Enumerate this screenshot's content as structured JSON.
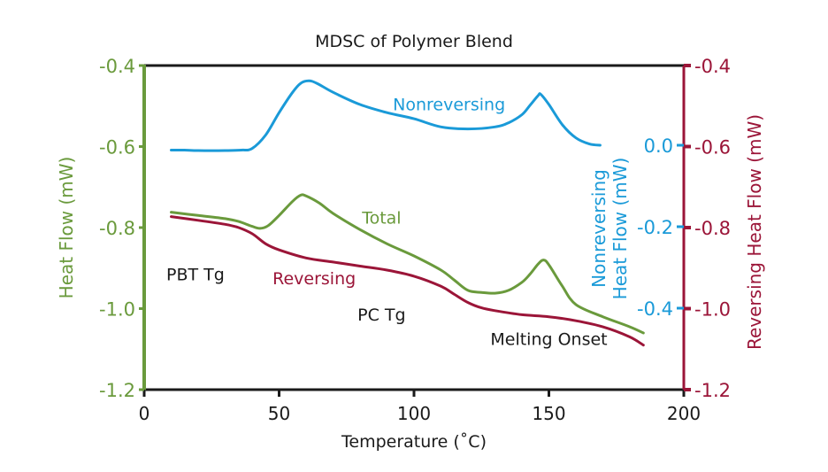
{
  "chart_data": {
    "type": "line",
    "title": "MDSC of Polymer Blend",
    "xlabel": "Temperature (˚C)",
    "xlim": [
      0,
      200
    ],
    "xticks": [
      0,
      50,
      100,
      150,
      200
    ],
    "xtick_labels": [
      "0",
      "50",
      "100",
      "150",
      "200"
    ],
    "grid": false,
    "axes": {
      "left": {
        "label": "Heat Flow (mW)",
        "ylim": [
          -1.2,
          -0.4
        ],
        "ticks": [
          -0.4,
          -0.6,
          -0.8,
          -1.0,
          -1.2
        ],
        "tick_labels": [
          "-0.4",
          "-0.6",
          "-0.8",
          "-1.0",
          "-1.2"
        ],
        "color": "#6a9a3c"
      },
      "right_nonreversing": {
        "label_line1": "Nonreversing",
        "label_line2": "Heat Flow (mW)",
        "ticks": [
          0.0,
          -0.2,
          -0.4
        ],
        "tick_labels": [
          "0.0",
          "-0.2",
          "-0.4"
        ],
        "color": "#1a9ad8"
      },
      "right_reversing": {
        "label": "Reversing Heat Flow (mW)",
        "ylim": [
          -1.2,
          -0.4
        ],
        "ticks": [
          -0.4,
          -0.6,
          -0.8,
          -1.0,
          -1.2
        ],
        "tick_labels": [
          "-0.4",
          "-0.6",
          "-0.8",
          "-1.0",
          "-1.2"
        ],
        "color": "#9b1538"
      }
    },
    "series": [
      {
        "name": "Nonreversing",
        "axis": "right_nonreversing",
        "color": "#1a9ad8",
        "x": [
          10,
          15,
          20,
          30,
          36,
          40,
          45,
          50,
          55,
          58,
          61,
          64,
          70,
          80,
          90,
          100,
          110,
          120,
          130,
          135,
          140,
          143,
          146,
          147,
          150,
          155,
          160,
          165,
          169
        ],
        "y": [
          -0.012,
          -0.012,
          -0.013,
          -0.013,
          -0.012,
          -0.008,
          0.025,
          0.08,
          0.13,
          0.152,
          0.158,
          0.152,
          0.13,
          0.1,
          0.08,
          0.065,
          0.045,
          0.04,
          0.045,
          0.055,
          0.075,
          0.098,
          0.122,
          0.125,
          0.1,
          0.05,
          0.018,
          0.003,
          0.0
        ]
      },
      {
        "name": "Total",
        "axis": "left",
        "color": "#6a9a3c",
        "x": [
          10,
          20,
          30,
          35,
          40,
          43,
          46,
          50,
          55,
          58,
          60,
          65,
          70,
          80,
          90,
          100,
          110,
          115,
          120,
          125,
          130,
          135,
          140,
          143,
          146,
          148,
          150,
          155,
          160,
          170,
          180,
          185
        ],
        "y": [
          -0.762,
          -0.77,
          -0.778,
          -0.785,
          -0.797,
          -0.802,
          -0.795,
          -0.77,
          -0.735,
          -0.72,
          -0.722,
          -0.74,
          -0.765,
          -0.805,
          -0.84,
          -0.87,
          -0.905,
          -0.93,
          -0.955,
          -0.96,
          -0.962,
          -0.955,
          -0.935,
          -0.915,
          -0.89,
          -0.88,
          -0.892,
          -0.945,
          -0.99,
          -1.02,
          -1.045,
          -1.06
        ]
      },
      {
        "name": "Reversing",
        "axis": "right_reversing",
        "color": "#9b1538",
        "x": [
          10,
          20,
          30,
          35,
          40,
          45,
          50,
          60,
          70,
          80,
          90,
          100,
          110,
          115,
          120,
          125,
          130,
          140,
          150,
          160,
          170,
          180,
          185
        ],
        "y": [
          -0.773,
          -0.782,
          -0.792,
          -0.8,
          -0.815,
          -0.84,
          -0.855,
          -0.875,
          -0.885,
          -0.895,
          -0.905,
          -0.92,
          -0.945,
          -0.965,
          -0.985,
          -0.998,
          -1.005,
          -1.015,
          -1.02,
          -1.03,
          -1.045,
          -1.07,
          -1.09
        ]
      }
    ],
    "annotations": [
      {
        "text": "Nonreversing",
        "color": "#1a9ad8",
        "x": 113,
        "y": -0.51
      },
      {
        "text": "Total",
        "color": "#6a9a3c",
        "x": 88,
        "y": -0.79
      },
      {
        "text": "Reversing",
        "color": "#9b1538",
        "x": 63,
        "y": -0.94
      },
      {
        "text": "PBT Tg",
        "color": "#1a1a1a",
        "x": 19,
        "y": -0.93
      },
      {
        "text": "PC Tg",
        "color": "#1a1a1a",
        "x": 88,
        "y": -1.03
      },
      {
        "text": "Melting Onset",
        "color": "#1a1a1a",
        "x": 150,
        "y": -1.09
      }
    ],
    "legend": "none"
  }
}
